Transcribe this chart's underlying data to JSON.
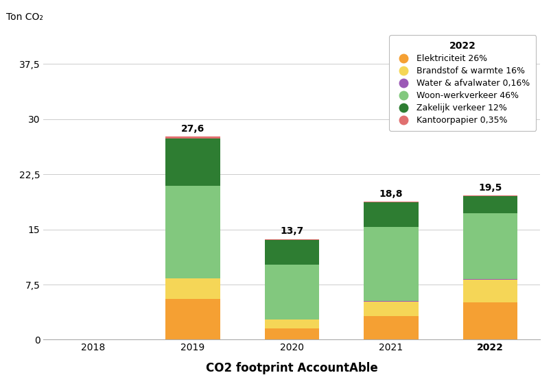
{
  "years": [
    "2018",
    "2019",
    "2020",
    "2021",
    "2022"
  ],
  "totals": [
    null,
    27.6,
    13.7,
    18.8,
    19.5
  ],
  "segments": {
    "Elektriciteit 26%": {
      "color": "#F5A033",
      "values": [
        0,
        5.5,
        1.5,
        3.2,
        5.07
      ]
    },
    "Brandstof & warmte 16%": {
      "color": "#F5D657",
      "values": [
        0,
        2.8,
        1.2,
        2.0,
        3.12
      ]
    },
    "Water & afvalwater 0,16%": {
      "color": "#9B59B6",
      "values": [
        0,
        0.04,
        0.02,
        0.03,
        0.03
      ]
    },
    "Woon-werkverkeer 46%": {
      "color": "#82C87E",
      "values": [
        0,
        12.56,
        7.51,
        10.12,
        8.97
      ]
    },
    "Zakelijk verkeer 12%": {
      "color": "#2E7D32",
      "values": [
        0,
        6.5,
        3.3,
        3.37,
        2.34
      ]
    },
    "Kantoorpapier 0,35%": {
      "color": "#E07070",
      "values": [
        0,
        0.2,
        0.17,
        0.08,
        0.07
      ]
    }
  },
  "legend_labels": [
    "Elektriciteit 26%",
    "Brandstof & warmte 16%",
    "Water & afvalwater 0,16%",
    "Woon-werkverkeer 46%",
    "Zakelijk verkeer 12%",
    "Kantoorpapier 0,35%"
  ],
  "legend_colors": [
    "#F5A033",
    "#F5D657",
    "#9B59B6",
    "#82C87E",
    "#2E7D32",
    "#E07070"
  ],
  "legend_title": "2022",
  "xlabel": "CO2 footprint AccountAble",
  "ylabel": "Ton CO₂",
  "yticks": [
    0,
    7.5,
    15,
    22.5,
    30,
    37.5
  ],
  "ytick_labels": [
    "0",
    "7,5",
    "15",
    "22,5",
    "30",
    "37,5"
  ],
  "background_color": "#ffffff",
  "bar_width": 0.55,
  "ylim": [
    0,
    42
  ]
}
